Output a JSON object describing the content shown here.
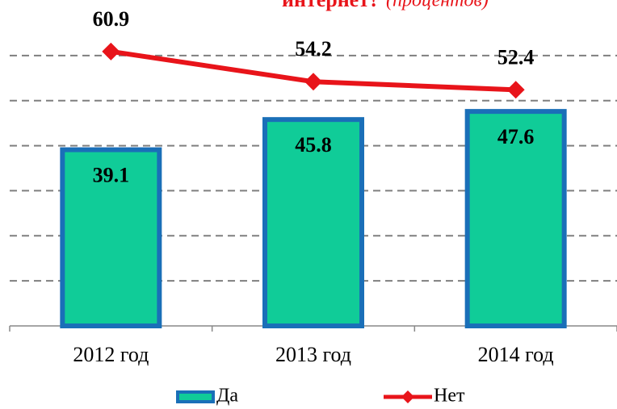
{
  "chart_data": {
    "type": "bar_line",
    "title": "интернет?",
    "subtitle": "(процентов)",
    "categories": [
      "2012 год",
      "2013 год",
      "2014 год"
    ],
    "series": [
      {
        "name": "Да",
        "type": "bar",
        "color": "#10cc98",
        "edge_color": "#1a6fb8",
        "values": [
          39.1,
          45.8,
          47.6
        ]
      },
      {
        "name": "Нет",
        "type": "line",
        "color": "#e8141a",
        "values": [
          60.9,
          54.2,
          52.4
        ]
      }
    ],
    "ylim": [
      0,
      70
    ],
    "yticks": [
      10,
      20,
      30,
      40,
      50,
      60
    ],
    "grid": true,
    "legend": "bottom"
  }
}
